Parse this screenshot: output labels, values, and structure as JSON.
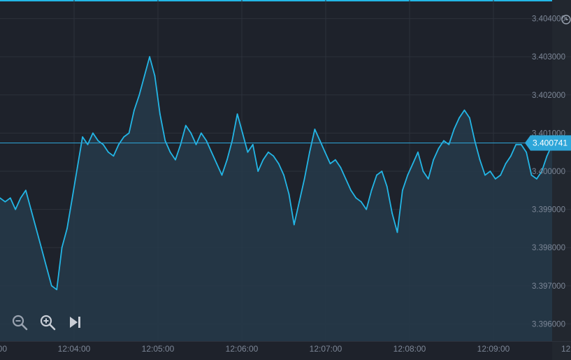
{
  "chart_data": {
    "type": "area",
    "title": "",
    "xlabel": "",
    "ylabel": "",
    "x_ticks": [
      "00",
      "12:04:00",
      "12:05:00",
      "12:06:00",
      "12:07:00",
      "12:08:00",
      "12:09:00",
      "12"
    ],
    "y_ticks": [
      "3.404000",
      "3.403000",
      "3.402000",
      "3.401000",
      "3.400000",
      "3.399000",
      "3.398000",
      "3.397000",
      "3.396000"
    ],
    "ylim": [
      3.39555,
      3.40445
    ],
    "current_price": "3.400741",
    "series": [
      {
        "values": [
          3.3993,
          3.3992,
          3.3993,
          3.399,
          3.3993,
          3.3995,
          3.399,
          3.3985,
          3.398,
          3.3975,
          3.397,
          3.3969,
          3.398,
          3.3985,
          3.3993,
          3.4001,
          3.4009,
          3.4007,
          3.401,
          3.4008,
          3.4007,
          3.4005,
          3.4004,
          3.4007,
          3.4009,
          3.401,
          3.4016,
          3.402,
          3.4025,
          3.403,
          3.4025,
          3.4015,
          3.4008,
          3.4005,
          3.4003,
          3.4007,
          3.4012,
          3.401,
          3.4007,
          3.401,
          3.4008,
          3.4005,
          3.4002,
          3.3999,
          3.4003,
          3.4008,
          3.4015,
          3.401,
          3.4005,
          3.4007,
          3.4,
          3.4003,
          3.4005,
          3.4004,
          3.4002,
          3.3999,
          3.3994,
          3.3986,
          3.3992,
          3.3998,
          3.4005,
          3.4011,
          3.4008,
          3.4005,
          3.4002,
          3.4003,
          3.4001,
          3.3998,
          3.3995,
          3.3993,
          3.3992,
          3.399,
          3.3995,
          3.3999,
          3.4,
          3.3996,
          3.3989,
          3.3984,
          3.3995,
          3.3999,
          3.4002,
          3.4005,
          3.4,
          3.3998,
          3.4003,
          3.4006,
          3.4008,
          3.4007,
          3.4011,
          3.4014,
          3.4016,
          3.4014,
          3.4008,
          3.4003,
          3.3999,
          3.4,
          3.3998,
          3.3999,
          3.4002,
          3.4004,
          3.4007,
          3.4007,
          3.4005,
          3.3999,
          3.3998,
          3.4,
          3.4004,
          3.4007
        ]
      }
    ],
    "grid": true,
    "legend": "none"
  },
  "colors": {
    "background": "#1e222b",
    "grid": "#2c313b",
    "line": "#23b6e6",
    "fill": "#26394a",
    "tick_label": "#7c8696",
    "current_line": "#2ea6d9",
    "current_badge": "#2ea6d9",
    "current_text": "#ffffff",
    "icon": "#9aa3b0",
    "right_panel": "#22272f"
  },
  "controls": {
    "zoom_out": "zoom-out-icon",
    "zoom_in": "zoom-in-icon",
    "scroll_to_end": "skip-to-end-icon",
    "clock": "clock-icon"
  }
}
